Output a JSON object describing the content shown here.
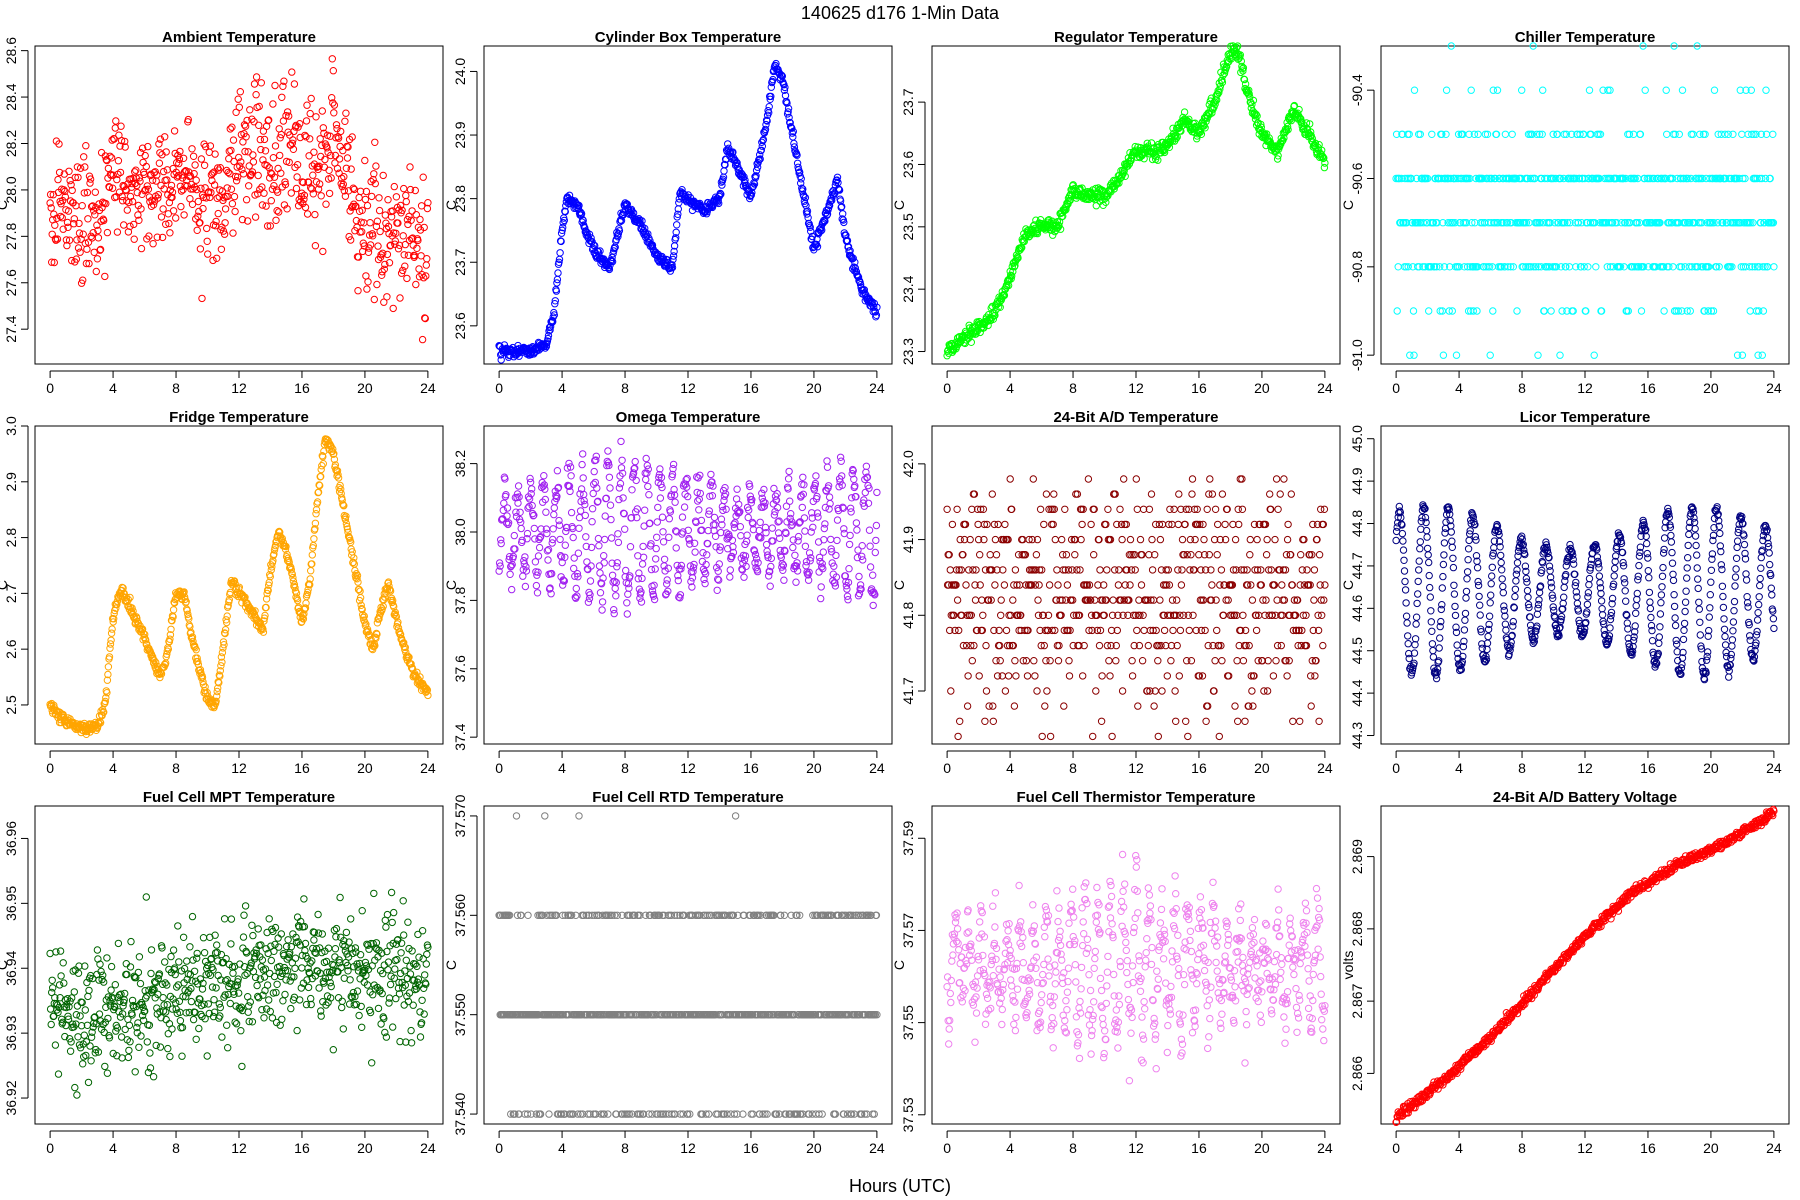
{
  "figure": {
    "title": "140625    d176    1-Min Data",
    "xlabel": "Hours (UTC)"
  },
  "chart_data": [
    {
      "type": "scatter",
      "title": "Ambient Temperature",
      "ylabel": "C",
      "color": "#ff0000",
      "xlim": [
        -0.96,
        24.96
      ],
      "ylim": [
        27.25,
        28.62
      ],
      "xticks": [
        0,
        4,
        8,
        12,
        16,
        20,
        24
      ],
      "yticks": [
        27.4,
        27.6,
        27.8,
        28.0,
        28.2,
        28.4,
        28.6
      ],
      "yprec": 1,
      "decimals": 2,
      "pattern": "noisy",
      "x": [
        0,
        1,
        2,
        3,
        4,
        5,
        6,
        7,
        8,
        9,
        10,
        11,
        12,
        13,
        14,
        15,
        16,
        17,
        18,
        19,
        20,
        21,
        22,
        23,
        24
      ],
      "y": [
        27.9,
        27.92,
        27.88,
        27.85,
        28.1,
        28.0,
        27.98,
        28.0,
        28.03,
        28.02,
        27.95,
        27.92,
        28.15,
        28.17,
        28.1,
        28.2,
        28.15,
        28.1,
        28.25,
        28.0,
        27.8,
        27.85,
        27.75,
        27.78,
        27.75
      ],
      "noise": 0.14
    },
    {
      "type": "scatter",
      "title": "Cylinder Box Temperature",
      "ylabel": "C",
      "color": "#0000ff",
      "xlim": [
        -0.96,
        24.96
      ],
      "ylim": [
        23.54,
        24.04
      ],
      "xticks": [
        0,
        4,
        8,
        12,
        16,
        20,
        24
      ],
      "yticks": [
        23.6,
        23.7,
        23.8,
        23.9,
        24.0
      ],
      "yprec": 1,
      "decimals": 2,
      "pattern": "line",
      "x": [
        0,
        2,
        3,
        3.5,
        4,
        4.3,
        5,
        5.5,
        6,
        7,
        8,
        9,
        10,
        11,
        11.5,
        12,
        13,
        14,
        14.5,
        15,
        16,
        17,
        17.5,
        18,
        19,
        20,
        21,
        21.5,
        22,
        23,
        24
      ],
      "y": [
        23.56,
        23.56,
        23.57,
        23.62,
        23.75,
        23.8,
        23.79,
        23.75,
        23.72,
        23.69,
        23.79,
        23.76,
        23.71,
        23.69,
        23.81,
        23.8,
        23.78,
        23.8,
        23.88,
        23.86,
        23.8,
        23.92,
        24.01,
        23.99,
        23.85,
        23.72,
        23.79,
        23.83,
        23.74,
        23.66,
        23.62
      ],
      "noise": 0.004
    },
    {
      "type": "scatter",
      "title": "Regulator Temperature",
      "ylabel": "C",
      "color": "#00ff00",
      "xlim": [
        -0.96,
        24.96
      ],
      "ylim": [
        23.28,
        23.79
      ],
      "xticks": [
        0,
        4,
        8,
        12,
        16,
        20,
        24
      ],
      "yticks": [
        23.3,
        23.4,
        23.5,
        23.6,
        23.7
      ],
      "yprec": 1,
      "decimals": 2,
      "pattern": "line",
      "x": [
        0,
        1,
        2,
        3,
        4,
        5,
        6,
        7,
        8,
        9,
        10,
        11,
        12,
        13,
        14,
        15,
        16,
        17,
        18,
        18.5,
        19,
        20,
        21,
        22,
        23,
        24
      ],
      "y": [
        23.3,
        23.32,
        23.34,
        23.36,
        23.42,
        23.49,
        23.5,
        23.5,
        23.56,
        23.55,
        23.55,
        23.58,
        23.62,
        23.62,
        23.63,
        23.67,
        23.65,
        23.7,
        23.78,
        23.78,
        23.72,
        23.65,
        23.62,
        23.69,
        23.65,
        23.6
      ],
      "noise": 0.006
    },
    {
      "type": "scatter",
      "title": "Chiller Temperature",
      "ylabel": "C",
      "color": "#00ffff",
      "xlim": [
        -0.96,
        24.96
      ],
      "ylim": [
        -91.02,
        -90.3
      ],
      "xticks": [
        0,
        4,
        8,
        12,
        16,
        20,
        24
      ],
      "yticks": [
        -91.0,
        -90.8,
        -90.6,
        -90.4
      ],
      "yprec": 1,
      "decimals": 1,
      "pattern": "discrete",
      "levels": [
        -91.0,
        -90.9,
        -90.8,
        -90.7,
        -90.6,
        -90.5,
        -90.4,
        -90.3
      ],
      "weights": [
        0.02,
        0.06,
        0.2,
        0.27,
        0.3,
        0.12,
        0.02,
        0.01
      ],
      "x": [
        0,
        24
      ],
      "y": [
        -90.7,
        -90.6
      ],
      "noise": 0
    },
    {
      "type": "scatter",
      "title": "Fridge Temperature",
      "ylabel": "C",
      "color": "#ffa500",
      "xlim": [
        -0.96,
        24.96
      ],
      "ylim": [
        2.43,
        3.0
      ],
      "xticks": [
        0,
        4,
        8,
        12,
        16,
        20,
        24
      ],
      "yticks": [
        2.5,
        2.6,
        2.7,
        2.8,
        2.9,
        3.0
      ],
      "yprec": 1,
      "decimals": 2,
      "pattern": "line",
      "x": [
        0,
        1,
        2,
        3,
        3.5,
        4,
        4.5,
        5,
        6,
        7,
        7.5,
        8,
        8.5,
        9,
        10,
        10.5,
        11,
        11.5,
        12,
        13,
        13.5,
        14,
        14.5,
        15,
        16,
        16.5,
        17,
        17.5,
        18,
        19,
        20,
        20.5,
        21,
        21.5,
        22,
        23,
        24
      ],
      "y": [
        2.5,
        2.47,
        2.46,
        2.46,
        2.5,
        2.66,
        2.71,
        2.68,
        2.62,
        2.55,
        2.6,
        2.7,
        2.7,
        2.62,
        2.51,
        2.5,
        2.6,
        2.72,
        2.7,
        2.66,
        2.63,
        2.74,
        2.81,
        2.78,
        2.65,
        2.72,
        2.87,
        2.98,
        2.95,
        2.8,
        2.65,
        2.6,
        2.67,
        2.72,
        2.65,
        2.56,
        2.52
      ],
      "noise": 0.005
    },
    {
      "type": "scatter",
      "title": "Omega Temperature",
      "ylabel": "C",
      "color": "#a020f0",
      "xlim": [
        -0.96,
        24.96
      ],
      "ylim": [
        37.38,
        38.31
      ],
      "xticks": [
        0,
        4,
        8,
        12,
        16,
        20,
        24
      ],
      "yticks": [
        37.4,
        37.6,
        37.8,
        38.0,
        38.2
      ],
      "yprec": 1,
      "decimals": 2,
      "pattern": "oscillate",
      "base": 38.0,
      "amp": 0.2,
      "period": 0.82,
      "noise": 0.03,
      "x": [
        0,
        24
      ],
      "y": [
        38.0,
        38.0
      ]
    },
    {
      "type": "scatter",
      "title": "24-Bit A/D Temperature",
      "ylabel": "C",
      "color": "#8b0000",
      "xlim": [
        -0.96,
        24.96
      ],
      "ylim": [
        41.63,
        42.05
      ],
      "xticks": [
        0,
        4,
        8,
        12,
        16,
        20,
        24
      ],
      "yticks": [
        41.7,
        41.8,
        41.9,
        42.0
      ],
      "yprec": 1,
      "decimals": 2,
      "pattern": "discrete",
      "levels": [
        41.64,
        41.66,
        41.68,
        41.7,
        41.72,
        41.74,
        41.76,
        41.78,
        41.8,
        41.82,
        41.84,
        41.86,
        41.88,
        41.9,
        41.92,
        41.94,
        41.96,
        41.98,
        42.0,
        42.02,
        42.04
      ],
      "weights": [
        0.01,
        0.01,
        0.02,
        0.03,
        0.04,
        0.05,
        0.07,
        0.08,
        0.09,
        0.1,
        0.1,
        0.09,
        0.08,
        0.07,
        0.06,
        0.05,
        0.04,
        0.04,
        0.03,
        0.02,
        0.01
      ],
      "x": [
        0,
        24
      ],
      "y": [
        41.85,
        41.85
      ],
      "noise": 0
    },
    {
      "type": "scatter",
      "title": "Licor Temperature",
      "ylabel": "C",
      "color": "#000080",
      "xlim": [
        -0.96,
        24.96
      ],
      "ylim": [
        44.28,
        45.03
      ],
      "xticks": [
        0,
        4,
        8,
        12,
        16,
        20,
        24
      ],
      "yticks": [
        44.3,
        44.4,
        44.5,
        44.6,
        44.7,
        44.8,
        44.9,
        45.0
      ],
      "yprec": 1,
      "decimals": 2,
      "pattern": "oscillate",
      "base": 44.64,
      "amp": 0.2,
      "period": 1.55,
      "noise": 0.005,
      "x": [
        0,
        24
      ],
      "y": [
        44.64,
        44.64
      ]
    },
    {
      "type": "scatter",
      "title": "Fuel Cell MPT Temperature",
      "ylabel": "C",
      "color": "#006400",
      "xlim": [
        -0.96,
        24.96
      ],
      "ylim": [
        36.916,
        36.965
      ],
      "xticks": [
        0,
        4,
        8,
        12,
        16,
        20,
        24
      ],
      "yticks": [
        36.92,
        36.93,
        36.94,
        36.95,
        36.96
      ],
      "yprec": 2,
      "decimals": 3,
      "pattern": "noisy",
      "x": [
        0,
        4,
        8,
        12,
        16,
        20,
        24
      ],
      "y": [
        36.934,
        36.933,
        36.937,
        36.938,
        36.941,
        36.94,
        36.938
      ],
      "noise": 0.0045
    },
    {
      "type": "scatter",
      "title": "Fuel Cell RTD Temperature",
      "ylabel": "C",
      "color": "#808080",
      "xlim": [
        -0.96,
        24.96
      ],
      "ylim": [
        37.539,
        37.571
      ],
      "xticks": [
        0,
        4,
        8,
        12,
        16,
        20,
        24
      ],
      "yticks": [
        37.54,
        37.55,
        37.56,
        37.57
      ],
      "yprec": 3,
      "decimals": 3,
      "pattern": "discrete",
      "levels": [
        37.54,
        37.55,
        37.56,
        37.57
      ],
      "weights": [
        0.18,
        0.55,
        0.26,
        0.01
      ],
      "x": [
        0,
        24
      ],
      "y": [
        37.55,
        37.55
      ],
      "noise": 0
    },
    {
      "type": "scatter",
      "title": "Fuel Cell Thermistor Temperature",
      "ylabel": "C",
      "color": "#ee82ee",
      "xlim": [
        -0.96,
        24.96
      ],
      "ylim": [
        37.528,
        37.597
      ],
      "xticks": [
        0,
        4,
        8,
        12,
        16,
        20,
        24
      ],
      "yticks": [
        37.53,
        37.55,
        37.57,
        37.59
      ],
      "yprec": 2,
      "decimals": 3,
      "pattern": "oscillate",
      "base": 37.562,
      "amp": 0.016,
      "period": 0.82,
      "noise": 0.004,
      "x": [
        0,
        24
      ],
      "y": [
        37.562,
        37.562
      ]
    },
    {
      "type": "scatter",
      "title": "24-Bit A/D Battery Voltage",
      "ylabel": "volts",
      "color": "#ff0000",
      "xlim": [
        -0.96,
        24.96
      ],
      "ylim": [
        2.8653,
        2.8697
      ],
      "xticks": [
        0,
        4,
        8,
        12,
        16,
        20,
        24
      ],
      "yticks": [
        2.866,
        2.867,
        2.868,
        2.869
      ],
      "yprec": 3,
      "decimals": 4,
      "pattern": "line",
      "x": [
        0,
        3,
        6,
        9,
        12,
        15,
        18,
        21,
        24
      ],
      "y": [
        2.8654,
        2.8659,
        2.8665,
        2.8672,
        2.8679,
        2.8685,
        2.8689,
        2.8692,
        2.8696
      ],
      "noise": 3e-05
    }
  ]
}
